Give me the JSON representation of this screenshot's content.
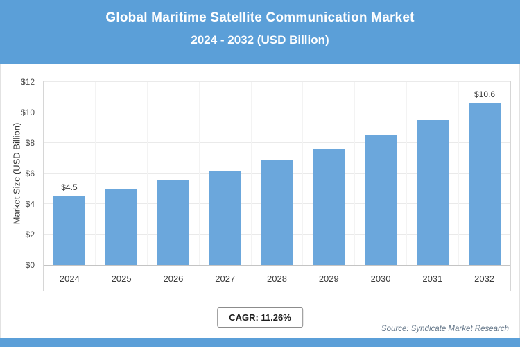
{
  "header": {
    "title_line1": "Global Maritime Satellite Communication Market",
    "title_line2": "2024 - 2032 (USD Billion)"
  },
  "chart_data": {
    "type": "bar",
    "categories": [
      "2024",
      "2025",
      "2026",
      "2027",
      "2028",
      "2029",
      "2030",
      "2031",
      "2032"
    ],
    "values": [
      4.5,
      5.0,
      5.55,
      6.2,
      6.9,
      7.65,
      8.5,
      9.5,
      10.6
    ],
    "point_labels": [
      "$4.5",
      "",
      "",
      "",
      "",
      "",
      "",
      "",
      "$10.6"
    ],
    "title": "Global Maritime Satellite Communication Market 2024 - 2032 (USD Billion)",
    "xlabel": "",
    "ylabel": "Market Size (USD Billion)",
    "ylim": [
      0,
      12
    ],
    "ytick_step": 2,
    "ytick_prefix": "$",
    "grid": true,
    "legend": "none",
    "bar_color": "#6ba7dc"
  },
  "colors": {
    "accent_blue": "#5b9fd8",
    "bar_blue": "#6ba7dc"
  },
  "footer": {
    "cagr_label": "CAGR: 11.26%",
    "source": "Source: Syndicate Market Research"
  }
}
